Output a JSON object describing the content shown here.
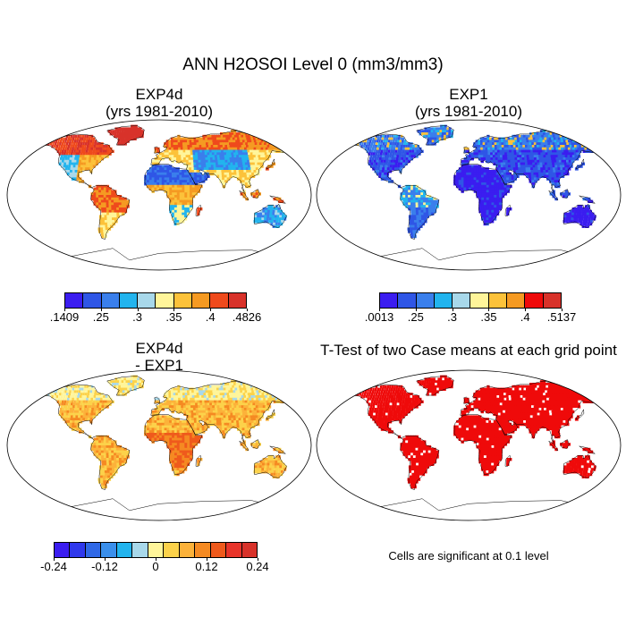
{
  "page": {
    "title": "ANN H2OSOI Level 0 (mm3/mm3)"
  },
  "panels": [
    {
      "id": "exp4d",
      "title": "EXP4d\n(yrs 1981-2010)",
      "palette": [
        "#3b1df0",
        "#2f56e6",
        "#3a7fec",
        "#22b4ee",
        "#a8d8ea",
        "#fff59a",
        "#fcc23a",
        "#f59a22",
        "#ef4a1c",
        "#d8322a"
      ],
      "ocean_fill": "#ffffff",
      "land_style": "mixed-warm",
      "legend": {
        "colors": [
          "#3b1df0",
          "#2f56e6",
          "#3a7fec",
          "#22b4ee",
          "#a8d8ea",
          "#fff59a",
          "#fcc23a",
          "#f59a22",
          "#ef4a1c",
          "#d8322a"
        ],
        "ticks": [
          ".1409",
          ".25",
          ".3",
          ".35",
          ".4",
          ".4826"
        ]
      }
    },
    {
      "id": "exp1",
      "title": "EXP1\n(yrs 1981-2010)",
      "land_style": "mostly-blue",
      "legend": {
        "colors": [
          "#3b1df0",
          "#2f56e6",
          "#3a7fec",
          "#22b4ee",
          "#a8d8ea",
          "#fff59a",
          "#fcc23a",
          "#f59a22",
          "#ef0a0a",
          "#d8322a"
        ],
        "ticks": [
          ".0013",
          ".25",
          ".3",
          ".35",
          ".4",
          ".5137"
        ]
      }
    },
    {
      "id": "diff",
      "title": "EXP4d\n- EXP1",
      "land_style": "diff-warm",
      "legend": {
        "colors": [
          "#3b1df0",
          "#2f38ec",
          "#2f68e6",
          "#3a8fec",
          "#22b4ee",
          "#a8d8ea",
          "#fff59a",
          "#fcd24a",
          "#fcb23a",
          "#f58a22",
          "#ef5a1c",
          "#e8342a",
          "#d8322a"
        ],
        "ticks": [
          "-0.24",
          "-0.12",
          "0",
          "0.12",
          "0.24"
        ]
      }
    },
    {
      "id": "ttest",
      "title": "T-Test of two Case means at each grid point",
      "land_style": "significant-red",
      "note": "Cells are significant at 0.1 level"
    }
  ]
}
